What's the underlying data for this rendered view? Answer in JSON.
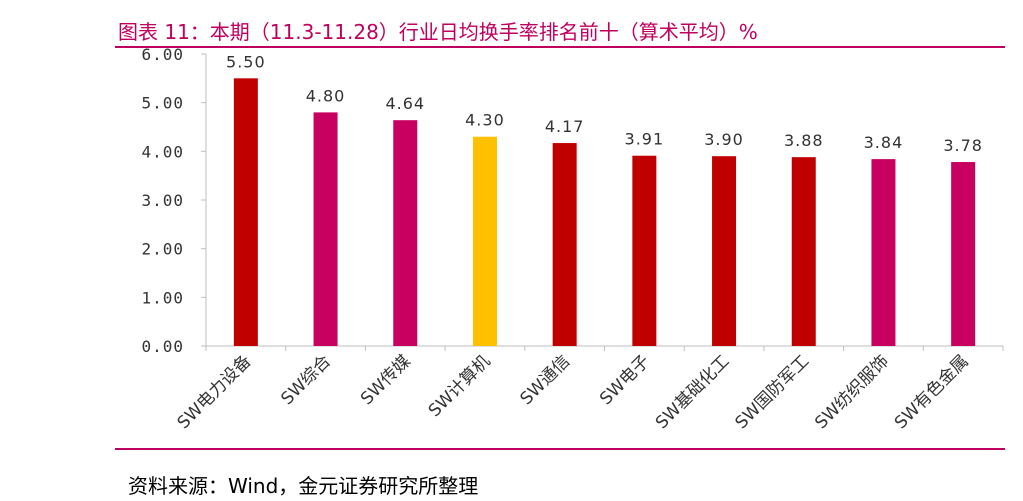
{
  "header": {
    "title": "图表 11：本期（11.3-11.28）行业日均换手率排名前十（算术平均）%"
  },
  "footer": {
    "source": "资料来源：Wind，金元证券研究所整理"
  },
  "chart_data": {
    "type": "bar",
    "categories": [
      "SW电力设备",
      "SW综合",
      "SW传媒",
      "SW计算机",
      "SW通信",
      "SW电子",
      "SW基础化工",
      "SW国防军工",
      "SW纺织服饰",
      "SW有色金属"
    ],
    "values": [
      5.5,
      4.8,
      4.64,
      4.3,
      4.17,
      3.91,
      3.9,
      3.88,
      3.84,
      3.78
    ],
    "value_labels": [
      "5.50",
      "4.80",
      "4.64",
      "4.30",
      "4.17",
      "3.91",
      "3.90",
      "3.88",
      "3.84",
      "3.78"
    ],
    "bar_colors": [
      "#c00000",
      "#c8005f",
      "#c8005f",
      "#ffc000",
      "#c00000",
      "#c00000",
      "#c00000",
      "#c00000",
      "#c8005f",
      "#c8005f"
    ],
    "ylim": [
      0,
      6
    ],
    "yticks": [
      "0.00",
      "1.00",
      "2.00",
      "3.00",
      "4.00",
      "5.00",
      "6.00"
    ],
    "grid": false,
    "legend": "none"
  }
}
